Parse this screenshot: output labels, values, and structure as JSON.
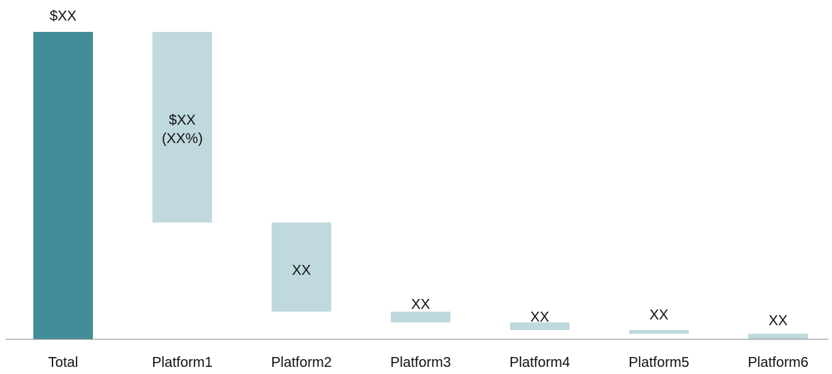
{
  "chart_data": {
    "type": "bar",
    "subtype": "waterfall",
    "categories": [
      "Total",
      "Platform1",
      "Platform2",
      "Platform3",
      "Platform4",
      "Platform5",
      "Platform6"
    ],
    "values": [
      100,
      62,
      29,
      3.5,
      2.5,
      1.2,
      1.8
    ],
    "bases": [
      0,
      38,
      9,
      5.5,
      3,
      1.8,
      0
    ],
    "data_labels": [
      [
        "$XX"
      ],
      [
        "$XX",
        "(XX%)"
      ],
      [
        "XX"
      ],
      [
        "XX"
      ],
      [
        "XX"
      ],
      [
        "XX"
      ],
      [
        "XX"
      ]
    ],
    "colors": {
      "total": "#418D99",
      "platform": "#BFD9DE",
      "axis": "#8A8A8A"
    },
    "ylim": [
      0,
      100
    ],
    "grid": false,
    "legend": "none"
  }
}
